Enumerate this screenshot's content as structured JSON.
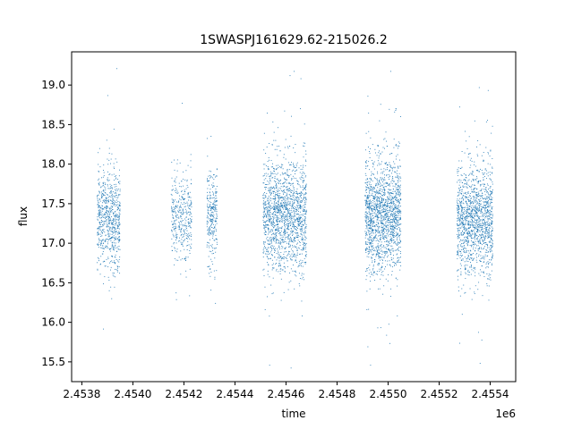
{
  "chart_data": {
    "type": "scatter",
    "title": "1SWASPJ161629.62-215026.2",
    "xlabel": "time",
    "ylabel": "flux",
    "x_offset_label": "1e6",
    "xlim": [
      2453760,
      2455500
    ],
    "ylim": [
      15.25,
      19.42
    ],
    "x_ticks": [
      2453800,
      2454000,
      2454200,
      2454400,
      2454600,
      2454800,
      2455000,
      2455200,
      2455400
    ],
    "x_tick_labels": [
      "2.4538",
      "2.4540",
      "2.4542",
      "2.4544",
      "2.4546",
      "2.4548",
      "2.4550",
      "2.4552",
      "2.4554"
    ],
    "y_ticks": [
      15.5,
      16.0,
      16.5,
      17.0,
      17.5,
      18.0,
      18.5,
      19.0
    ],
    "y_tick_labels": [
      "15.5",
      "16.0",
      "16.5",
      "17.0",
      "17.5",
      "18.0",
      "18.5",
      "19.0"
    ],
    "grid": false,
    "marker_color": "#1f77b4",
    "series": [
      {
        "segments": [
          {
            "x": [
              2453860,
              2453950
            ],
            "n": 700,
            "mean": 17.3,
            "sd": 0.3
          },
          {
            "x": [
              2454150,
              2454185
            ],
            "n": 160,
            "mean": 17.3,
            "sd": 0.3
          },
          {
            "x": [
              2454186,
              2454230
            ],
            "n": 220,
            "mean": 17.3,
            "sd": 0.3
          },
          {
            "x": [
              2454290,
              2454330
            ],
            "n": 280,
            "mean": 17.35,
            "sd": 0.3
          },
          {
            "x": [
              2454510,
              2454680
            ],
            "n": 1600,
            "mean": 17.35,
            "sd": 0.35
          },
          {
            "x": [
              2454910,
              2455050
            ],
            "n": 1600,
            "mean": 17.35,
            "sd": 0.35
          },
          {
            "x": [
              2455270,
              2455410
            ],
            "n": 1400,
            "mean": 17.3,
            "sd": 0.33
          }
        ]
      }
    ]
  }
}
